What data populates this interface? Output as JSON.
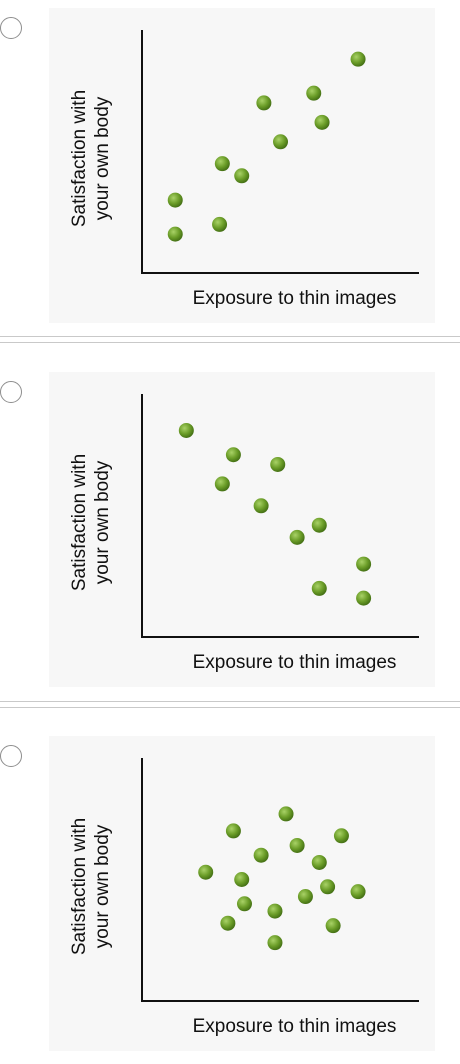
{
  "options": [
    {
      "radio_selected": false,
      "chart_data": {
        "type": "scatter",
        "xlabel": "Exposure to thin images",
        "ylabel_lines": [
          "Satisfaction with",
          "your own body"
        ],
        "xlim": [
          0,
          10
        ],
        "ylim": [
          0,
          10
        ],
        "grid": false,
        "marker_color": "#6b9d28",
        "points": [
          {
            "x": 1.2,
            "y": 1.6
          },
          {
            "x": 1.2,
            "y": 3.0
          },
          {
            "x": 2.8,
            "y": 2.0
          },
          {
            "x": 2.9,
            "y": 4.5
          },
          {
            "x": 3.6,
            "y": 4.0
          },
          {
            "x": 4.4,
            "y": 7.0
          },
          {
            "x": 5.0,
            "y": 5.4
          },
          {
            "x": 6.2,
            "y": 7.4
          },
          {
            "x": 6.5,
            "y": 6.2
          },
          {
            "x": 7.8,
            "y": 8.8
          }
        ]
      }
    },
    {
      "radio_selected": false,
      "chart_data": {
        "type": "scatter",
        "xlabel": "Exposure to thin images",
        "ylabel_lines": [
          "Satisfaction with",
          "your own body"
        ],
        "xlim": [
          0,
          10
        ],
        "ylim": [
          0,
          10
        ],
        "grid": false,
        "marker_color": "#6b9d28",
        "points": [
          {
            "x": 1.6,
            "y": 8.5
          },
          {
            "x": 3.3,
            "y": 7.5
          },
          {
            "x": 2.9,
            "y": 6.3
          },
          {
            "x": 4.9,
            "y": 7.1
          },
          {
            "x": 4.3,
            "y": 5.4
          },
          {
            "x": 5.6,
            "y": 4.1
          },
          {
            "x": 6.4,
            "y": 4.6
          },
          {
            "x": 6.4,
            "y": 2.0
          },
          {
            "x": 8.0,
            "y": 3.0
          },
          {
            "x": 8.0,
            "y": 1.6
          }
        ]
      }
    },
    {
      "radio_selected": false,
      "chart_data": {
        "type": "scatter",
        "xlabel": "Exposure to thin images",
        "ylabel_lines": [
          "Satisfaction with",
          "your own body"
        ],
        "xlim": [
          0,
          10
        ],
        "ylim": [
          0,
          10
        ],
        "grid": false,
        "marker_color": "#6b9d28",
        "points": [
          {
            "x": 5.2,
            "y": 7.7
          },
          {
            "x": 3.3,
            "y": 7.0
          },
          {
            "x": 7.2,
            "y": 6.8
          },
          {
            "x": 5.6,
            "y": 6.4
          },
          {
            "x": 4.3,
            "y": 6.0
          },
          {
            "x": 6.4,
            "y": 5.7
          },
          {
            "x": 2.3,
            "y": 5.3
          },
          {
            "x": 3.6,
            "y": 5.0
          },
          {
            "x": 6.7,
            "y": 4.7
          },
          {
            "x": 7.8,
            "y": 4.5
          },
          {
            "x": 5.9,
            "y": 4.3
          },
          {
            "x": 3.7,
            "y": 4.0
          },
          {
            "x": 4.8,
            "y": 3.7
          },
          {
            "x": 3.1,
            "y": 3.2
          },
          {
            "x": 6.9,
            "y": 3.1
          },
          {
            "x": 4.8,
            "y": 2.4
          }
        ]
      }
    }
  ]
}
